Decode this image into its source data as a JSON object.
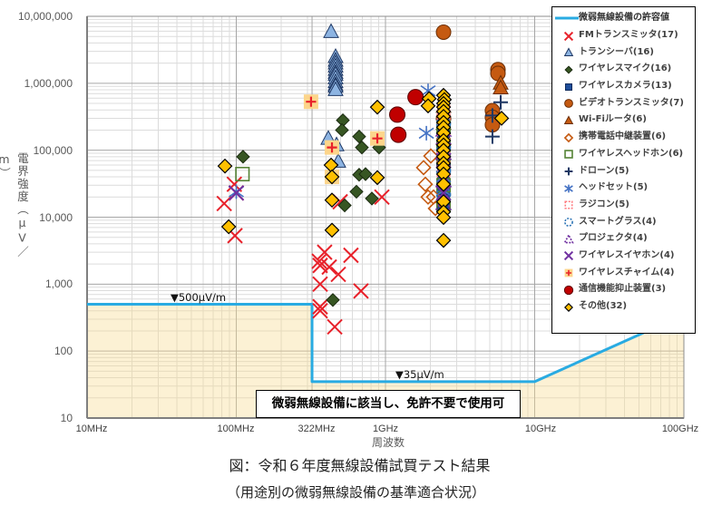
{
  "figure": {
    "title": "図：令和６年度無線設備試買テスト結果",
    "subtitle": "（用途別の微弱無線設備の基準適合状況）"
  },
  "chart_data": {
    "type": "scatter",
    "title": "図：令和６年度無線設備試買テスト結果",
    "subtitle": "（用途別の微弱無線設備の基準適合状況）",
    "xlabel": "周波数",
    "ylabel": "電界強度（μV／m）",
    "xscale": "log",
    "yscale": "log",
    "x_unit": "MHz",
    "y_unit": "μV/m",
    "xlim": [
      10,
      100000
    ],
    "ylim": [
      10,
      10000000
    ],
    "grid": true,
    "legend_position": "upper right",
    "x_ticks": [
      {
        "value": 10,
        "label": "10MHz"
      },
      {
        "value": 100,
        "label": "100MHz"
      },
      {
        "value": 322,
        "label": "322MHz"
      },
      {
        "value": 1000,
        "label": "1GHz"
      },
      {
        "value": 10000,
        "label": "10GHz"
      },
      {
        "value": 100000,
        "label": "100GHz"
      }
    ],
    "y_ticks": [
      {
        "value": 10000000,
        "label": "10,000,000"
      },
      {
        "value": 1000000,
        "label": "1,000,000"
      },
      {
        "value": 100000,
        "label": "100,000"
      },
      {
        "value": 10000,
        "label": "10,000"
      },
      {
        "value": 1000,
        "label": "1,000"
      },
      {
        "value": 100,
        "label": "100"
      },
      {
        "value": 10,
        "label": "10"
      }
    ],
    "limit_line": {
      "name": "微弱無線設備の許容値",
      "color": "#29abe2",
      "fill_color": "#f8d98f",
      "points": [
        [
          10,
          500
        ],
        [
          322,
          500
        ],
        [
          322,
          35
        ],
        [
          10000,
          35
        ],
        [
          100000,
          350
        ]
      ]
    },
    "annotations": [
      {
        "text": "▼500μV/m"
      },
      {
        "text": "▼35μV/m"
      },
      {
        "text": "微弱無線設備に該当し、免許不要で使用可"
      }
    ],
    "series": [
      {
        "id": "fm-transmitter",
        "name": "FMトランスミッタ(17)",
        "count": 17,
        "marker": "x",
        "stroke": "#e8212a",
        "fill": "none",
        "size": 8,
        "stroke_width": 2,
        "points": [
          [
            97,
            31000
          ],
          [
            100,
            23000
          ],
          [
            83,
            16000
          ],
          [
            98,
            5300
          ],
          [
            391,
            3000
          ],
          [
            587,
            2700
          ],
          [
            360,
            2200
          ],
          [
            365,
            1900
          ],
          [
            420,
            1800
          ],
          [
            483,
            1400
          ],
          [
            365,
            1000
          ],
          [
            685,
            790
          ],
          [
            365,
            460
          ],
          [
            365,
            400
          ],
          [
            457,
            230
          ],
          [
            946,
            20000
          ],
          [
            497,
            17000
          ]
        ]
      },
      {
        "id": "transceiver",
        "name": "トランシーバ(16)",
        "count": 16,
        "marker": "triangle",
        "stroke": "#1f3864",
        "fill": "#8db4e2",
        "size": 8,
        "stroke_width": 1,
        "points": [
          [
            432,
            5900000
          ],
          [
            463,
            2500000
          ],
          [
            463,
            2200000
          ],
          [
            463,
            2000000
          ],
          [
            463,
            1800000
          ],
          [
            463,
            1600000
          ],
          [
            463,
            1450000
          ],
          [
            463,
            1350000
          ],
          [
            463,
            1200000
          ],
          [
            463,
            1050000
          ],
          [
            463,
            950000
          ],
          [
            463,
            900000
          ],
          [
            463,
            800000
          ],
          [
            414,
            150000
          ],
          [
            470,
            120000
          ],
          [
            483,
            68000
          ]
        ]
      },
      {
        "id": "wireless-microphone",
        "name": "ワイヤレスマイク(16)",
        "count": 16,
        "marker": "diamond",
        "stroke": "#1a2a10",
        "fill": "#375623",
        "size": 7,
        "stroke_width": 1,
        "points": [
          [
            111,
            80000
          ],
          [
            518,
            280000
          ],
          [
            511,
            200000
          ],
          [
            666,
            160000
          ],
          [
            695,
            110000
          ],
          [
            906,
            110000
          ],
          [
            666,
            43000
          ],
          [
            735,
            44000
          ],
          [
            639,
            24000
          ],
          [
            811,
            19000
          ],
          [
            533,
            15000
          ],
          [
            444,
            580
          ],
          [
            2450,
            150000
          ],
          [
            2450,
            90000
          ],
          [
            2450,
            60000
          ],
          [
            2450,
            30000
          ]
        ]
      },
      {
        "id": "wireless-camera",
        "name": "ワイヤレスカメラ(13)",
        "count": 13,
        "marker": "square",
        "stroke": "#0d2a5c",
        "fill": "#1f4e9a",
        "size": 7.5,
        "stroke_width": 1,
        "points": [
          [
            2450,
            300000
          ],
          [
            2450,
            250000
          ],
          [
            2450,
            200000
          ],
          [
            2450,
            160000
          ],
          [
            2450,
            130000
          ],
          [
            2450,
            100000
          ],
          [
            2450,
            80000
          ],
          [
            2450,
            60000
          ],
          [
            2450,
            45000
          ],
          [
            2450,
            35000
          ],
          [
            2450,
            25000
          ],
          [
            2450,
            18000
          ],
          [
            2450,
            14000
          ]
        ]
      },
      {
        "id": "video-transmitter",
        "name": "ビデオトランスミッタ(7)",
        "count": 7,
        "marker": "circle",
        "stroke": "#6b2e05",
        "fill": "#c55a11",
        "size": 8,
        "stroke_width": 1,
        "points": [
          [
            2450,
            5800000
          ],
          [
            5675,
            1600000
          ],
          [
            5675,
            1400000
          ],
          [
            5210,
            390000
          ],
          [
            5210,
            310000
          ],
          [
            5210,
            240000
          ],
          [
            2450,
            300000
          ]
        ]
      },
      {
        "id": "wifi-router",
        "name": "Wi-Fiルータ(6)",
        "count": 6,
        "marker": "triangle",
        "stroke": "#6b2e05",
        "fill": "#c55a11",
        "size": 8,
        "stroke_width": 1,
        "points": [
          [
            5916,
            1000000
          ],
          [
            5916,
            850000
          ],
          [
            2450,
            450000
          ],
          [
            2450,
            350000
          ],
          [
            2450,
            250000
          ],
          [
            2450,
            150000
          ]
        ]
      },
      {
        "id": "mobile-repeater",
        "name": "携帯電話中継装置(6)",
        "count": 6,
        "marker": "diamond",
        "stroke": "#c55a11",
        "fill": "none",
        "size": 7.5,
        "stroke_width": 1.6,
        "points": [
          [
            2014,
            82000
          ],
          [
            1800,
            55000
          ],
          [
            1850,
            31000
          ],
          [
            1930,
            20000
          ],
          [
            2100,
            20000
          ],
          [
            2160,
            13500
          ]
        ]
      },
      {
        "id": "wireless-headphones",
        "name": "ワイヤレスヘッドホン(6)",
        "count": 6,
        "marker": "square",
        "stroke": "#548235",
        "fill": "none",
        "size": 8.5,
        "stroke_width": 1.6,
        "points": [
          [
            110,
            44000
          ],
          [
            2450,
            220000
          ],
          [
            2450,
            120000
          ],
          [
            2450,
            70000
          ],
          [
            2450,
            30000
          ],
          [
            2450,
            15000
          ]
        ]
      },
      {
        "id": "drone",
        "name": "ドローン(5)",
        "count": 5,
        "marker": "plus",
        "stroke": "#1f3864",
        "fill": "none",
        "size": 8,
        "stroke_width": 2,
        "points": [
          [
            5916,
            520000
          ],
          [
            5210,
            330000
          ],
          [
            5210,
            160000
          ],
          [
            2450,
            180000
          ],
          [
            2450,
            60000
          ]
        ]
      },
      {
        "id": "headset",
        "name": "ヘッドセット(5)",
        "count": 5,
        "marker": "asterisk",
        "stroke": "#4472c4",
        "fill": "none",
        "size": 8,
        "stroke_width": 1.6,
        "points": [
          [
            100,
            24000
          ],
          [
            1930,
            770000
          ],
          [
            1880,
            180000
          ],
          [
            2450,
            40000
          ],
          [
            2450,
            25000
          ]
        ]
      },
      {
        "id": "rc-toy",
        "name": "ラジコン(5)",
        "count": 5,
        "marker": "square",
        "stroke": "#ff7c80",
        "fill": "none",
        "size": 8,
        "stroke_width": 1.6,
        "dashed": true,
        "points": [
          [
            2450,
            400000
          ],
          [
            2450,
            300000
          ],
          [
            2450,
            150000
          ],
          [
            2450,
            80000
          ],
          [
            2450,
            50000
          ]
        ]
      },
      {
        "id": "smart-glasses",
        "name": "スマートグラス(4)",
        "count": 4,
        "marker": "circle",
        "stroke": "#2e75b6",
        "fill": "none",
        "size": 7.5,
        "stroke_width": 1.6,
        "dashed": true,
        "points": [
          [
            2450,
            250000
          ],
          [
            2450,
            110000
          ],
          [
            2450,
            50000
          ],
          [
            2450,
            22000
          ]
        ]
      },
      {
        "id": "projector",
        "name": "プロジェクタ(4)",
        "count": 4,
        "marker": "triangle",
        "stroke": "#7030a0",
        "fill": "none",
        "size": 8,
        "stroke_width": 1.6,
        "dashed": true,
        "points": [
          [
            2450,
            200000
          ],
          [
            2450,
            90000
          ],
          [
            2450,
            35000
          ],
          [
            2450,
            16000
          ]
        ]
      },
      {
        "id": "wireless-earphones",
        "name": "ワイヤレスイヤホン(4)",
        "count": 4,
        "marker": "x",
        "stroke": "#7030a0",
        "fill": "none",
        "size": 8,
        "stroke_width": 2,
        "points": [
          [
            100,
            23000
          ],
          [
            2450,
            100000
          ],
          [
            2450,
            70000
          ],
          [
            2450,
            23000
          ]
        ]
      },
      {
        "id": "wireless-chime",
        "name": "ワイヤレスチャイム(4)",
        "count": 4,
        "marker": "chime",
        "stroke": "#e8212a",
        "fill": "#fcd58b",
        "size": 8,
        "stroke_width": 2,
        "points": [
          [
            317,
            530000
          ],
          [
            438,
            110000
          ],
          [
            882,
            150000
          ],
          [
            438,
            40000
          ]
        ]
      },
      {
        "id": "signal-jammer",
        "name": "通信機能抑止装置(3)",
        "count": 3,
        "marker": "circle",
        "stroke": "#5a0000",
        "fill": "#c00000",
        "size": 8.5,
        "stroke_width": 1,
        "points": [
          [
            1590,
            620000
          ],
          [
            1200,
            340000
          ],
          [
            1220,
            170000
          ]
        ]
      },
      {
        "id": "other",
        "name": "その他(32)",
        "count": 32,
        "marker": "diamond",
        "stroke": "#000000",
        "fill": "#ffc000",
        "size": 7.5,
        "stroke_width": 1.2,
        "points": [
          [
            84,
            58000
          ],
          [
            89,
            7200
          ],
          [
            882,
            440000
          ],
          [
            432,
            60000
          ],
          [
            438,
            40000
          ],
          [
            438,
            18000
          ],
          [
            438,
            6400
          ],
          [
            882,
            39000
          ],
          [
            1960,
            590000
          ],
          [
            1930,
            460000
          ],
          [
            2450,
            660000
          ],
          [
            2480,
            570000
          ],
          [
            2450,
            500000
          ],
          [
            2450,
            440000
          ],
          [
            2450,
            380000
          ],
          [
            2450,
            320000
          ],
          [
            2450,
            260000
          ],
          [
            2450,
            220000
          ],
          [
            2450,
            180000
          ],
          [
            2450,
            140000
          ],
          [
            2450,
            120000
          ],
          [
            2450,
            100000
          ],
          [
            2450,
            80000
          ],
          [
            2450,
            64000
          ],
          [
            2450,
            55000
          ],
          [
            2450,
            44000
          ],
          [
            2450,
            31000
          ],
          [
            2450,
            17000
          ],
          [
            2450,
            12000
          ],
          [
            2450,
            9900
          ],
          [
            2450,
            4500
          ],
          [
            6000,
            300000
          ]
        ]
      }
    ]
  }
}
